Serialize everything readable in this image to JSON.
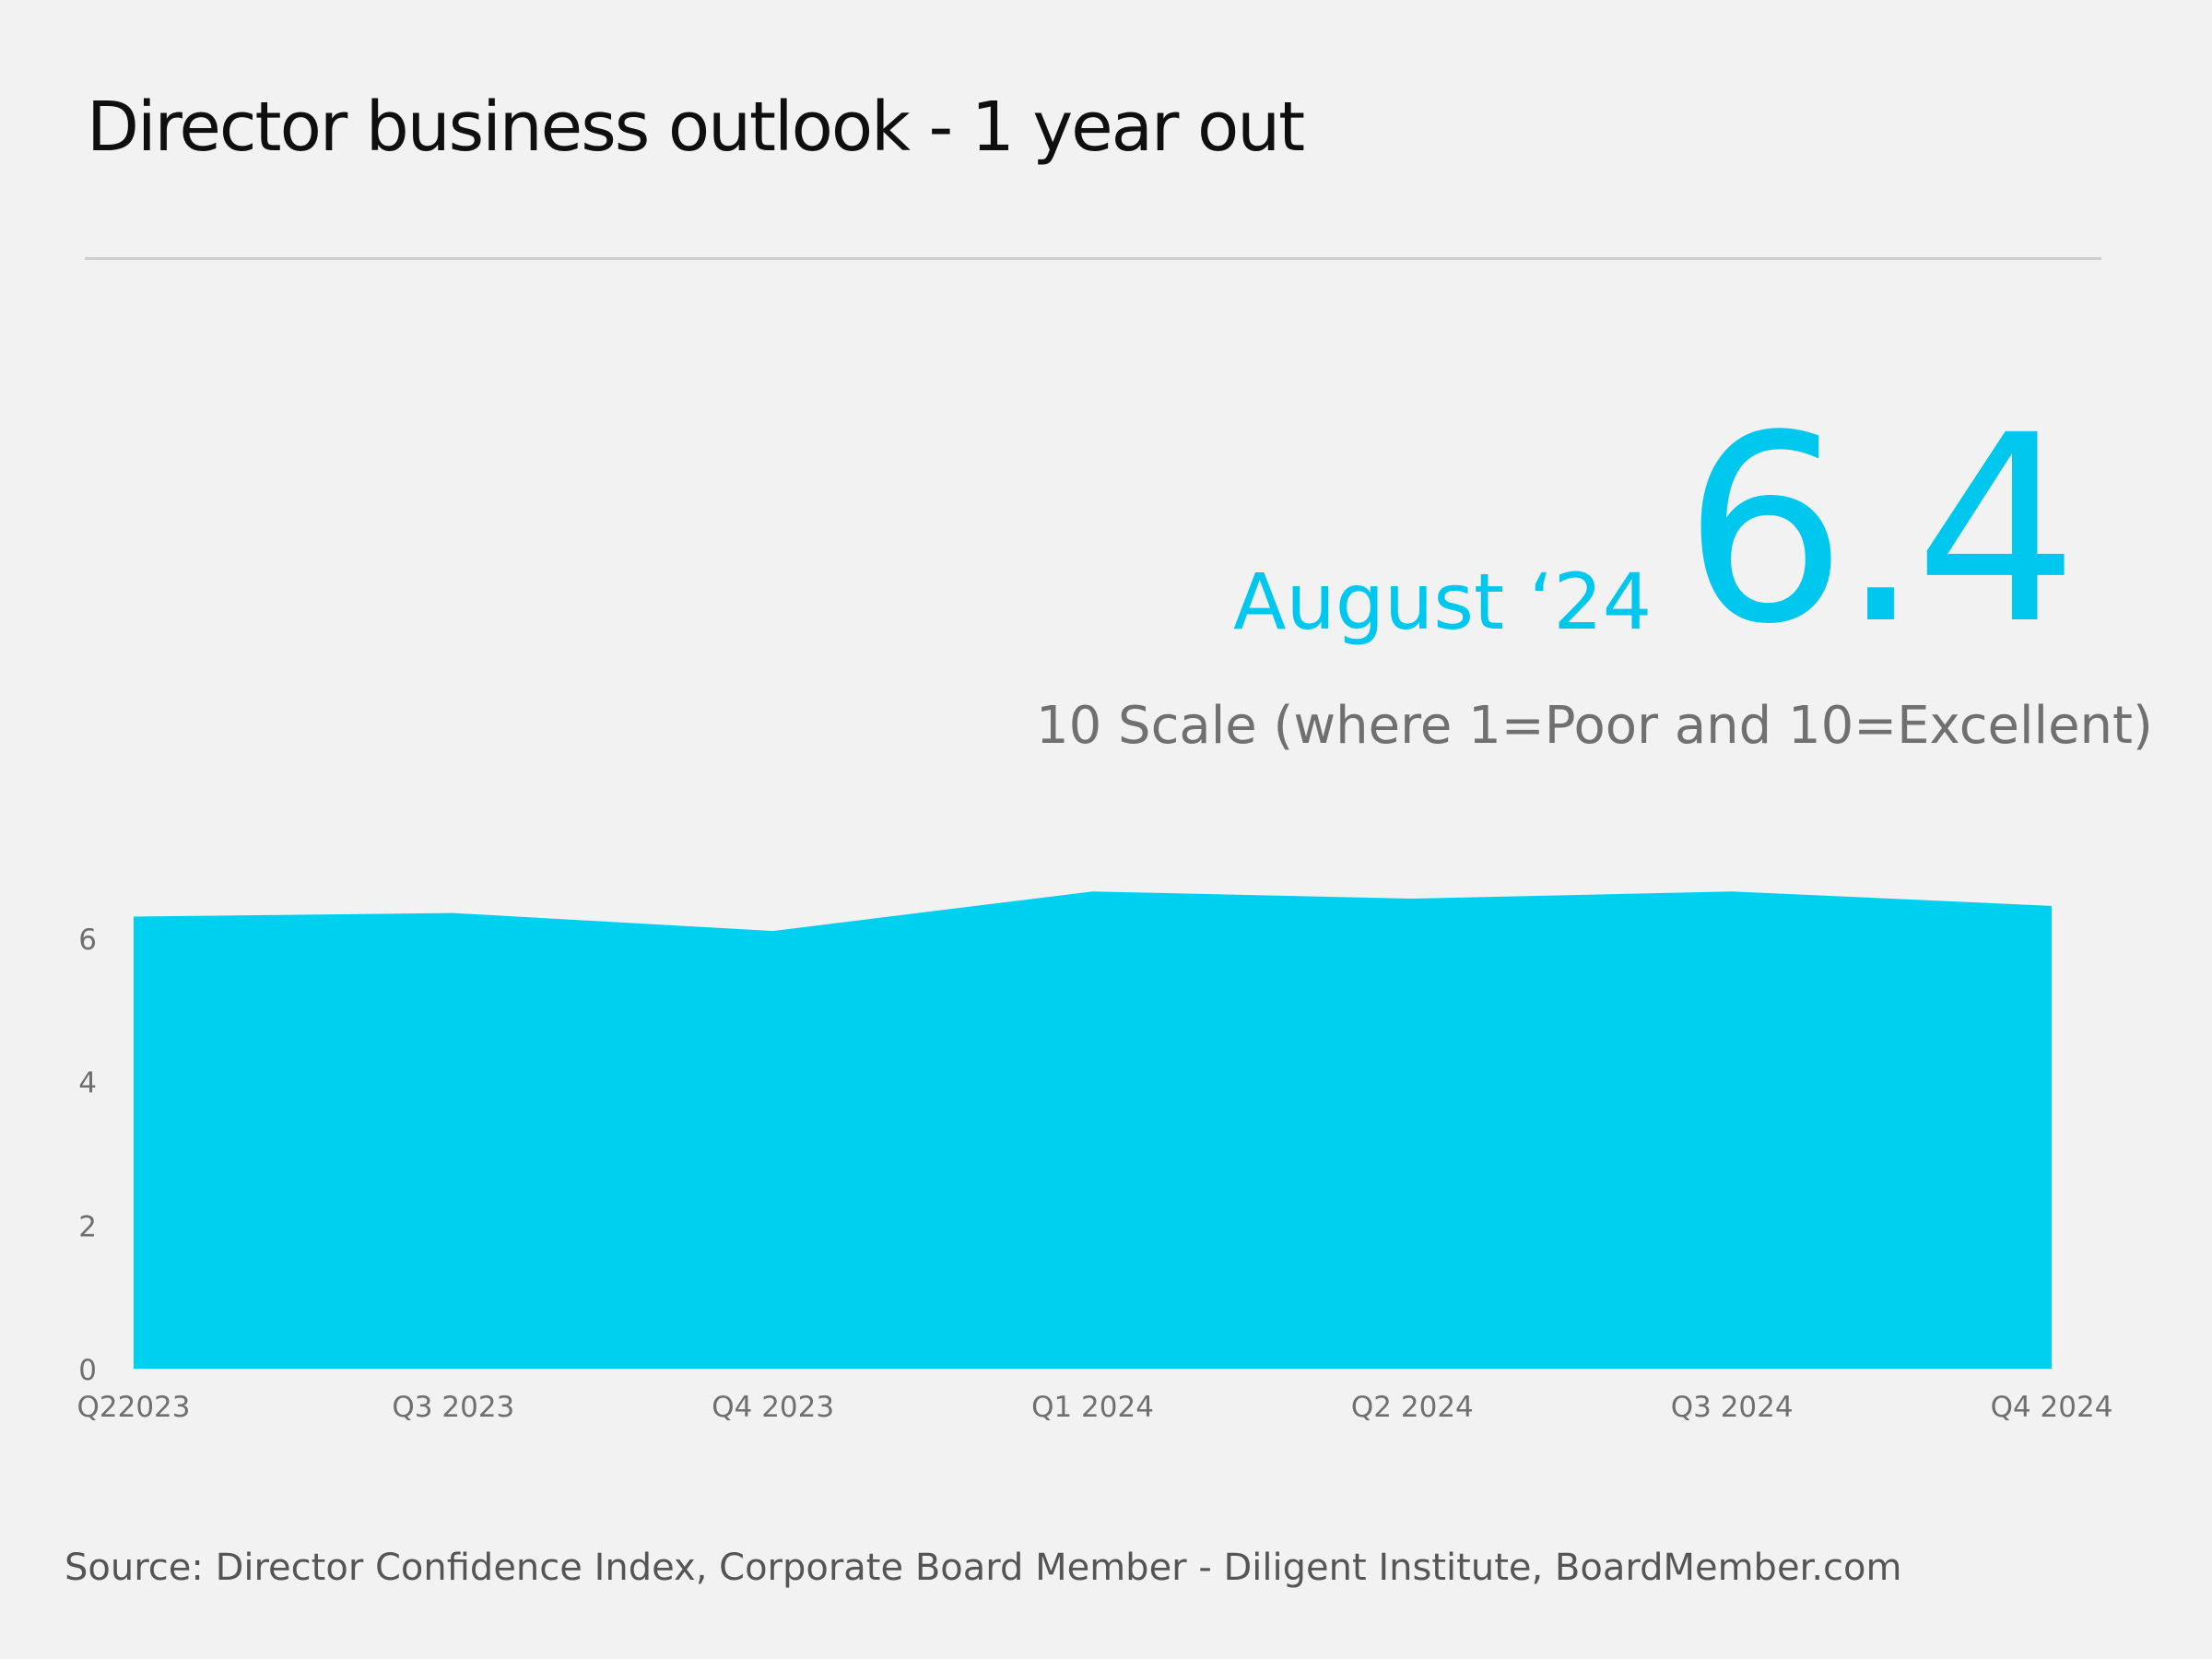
{
  "header": {
    "title": "Director business outlook - 1 year out"
  },
  "highlight": {
    "period": "August ‘24",
    "value": "6.4",
    "scale_note": "10 Scale (where 1=Poor and 10=Excellent)"
  },
  "source": {
    "text": "Source: Director Confidence Index, Corporate Board Member - Diligent Institute, BoardMember.com"
  },
  "chart_data": {
    "type": "area",
    "categories": [
      "Q22023",
      "Q3 2023",
      "Q4 2023",
      "Q1 2024",
      "Q2 2024",
      "Q3 2024",
      "Q4 2024"
    ],
    "values": [
      6.3,
      6.35,
      6.1,
      6.65,
      6.55,
      6.65,
      6.45
    ],
    "title": "Director business outlook - 1 year out",
    "xlabel": "",
    "ylabel": "",
    "ylim": [
      0,
      7
    ],
    "yticks": [
      0,
      2,
      4,
      6
    ],
    "grid": false,
    "legend": "none",
    "fill_color": "#00d0f0",
    "tick_color": "#6f6f6f"
  },
  "colors": {
    "accent": "#00c7ee",
    "background": "#f2f2f2",
    "title": "#0f0f0f",
    "muted": "#707070"
  }
}
